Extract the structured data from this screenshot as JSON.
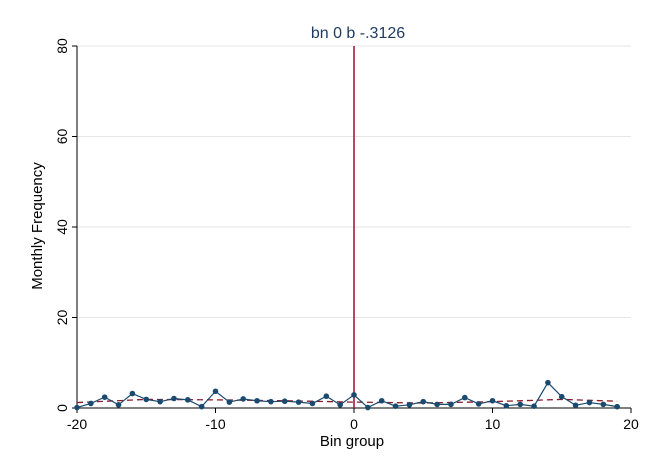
{
  "chart_data": {
    "type": "line",
    "title": "bn 0 b -.3126",
    "xlabel": "Bin group",
    "ylabel": "Monthly Frequency",
    "xlim": [
      -20,
      20
    ],
    "ylim": [
      0,
      80
    ],
    "xticks": [
      "-20",
      "-10",
      "0",
      "10",
      "20"
    ],
    "yticks": [
      "0",
      "20",
      "40",
      "60",
      "80"
    ],
    "grid": true,
    "cutoff_x": 0,
    "series": [
      {
        "style": "line-with-markers",
        "x": [
          -20,
          -19,
          -18,
          -17,
          -16,
          -15,
          -14,
          -13,
          -12,
          -11,
          -10,
          -9,
          -8,
          -7,
          -6,
          -5,
          -4,
          -3,
          -2,
          -1,
          0,
          1,
          2,
          3,
          4,
          5,
          6,
          7,
          8,
          9,
          10,
          11,
          12,
          13,
          14,
          15,
          16,
          17,
          18,
          19
        ],
        "y": [
          0.1,
          1.0,
          2.4,
          0.7,
          3.2,
          1.9,
          1.4,
          2.1,
          1.8,
          0.3,
          3.7,
          1.3,
          2.0,
          1.6,
          1.4,
          1.5,
          1.3,
          1.0,
          2.6,
          0.7,
          2.9,
          0.1,
          1.6,
          0.4,
          0.7,
          1.4,
          0.8,
          0.8,
          2.3,
          0.9,
          1.6,
          0.5,
          0.8,
          0.4,
          5.6,
          2.5,
          0.6,
          1.2,
          0.8,
          0.3
        ]
      },
      {
        "style": "dashed-fit",
        "x": [
          -20,
          -15,
          -10,
          -5,
          0,
          5,
          10,
          15,
          19
        ],
        "y": [
          1.2,
          1.9,
          1.8,
          1.6,
          1.3,
          1.1,
          1.4,
          1.9,
          1.5
        ]
      }
    ],
    "colors": {
      "line": "#1a4a6e",
      "marker": "#1a4a6e",
      "fit": "#8b1a2b",
      "cutoff": "#a31d40",
      "grid": "#e6e6e6",
      "title": "#1e3a5f"
    }
  }
}
